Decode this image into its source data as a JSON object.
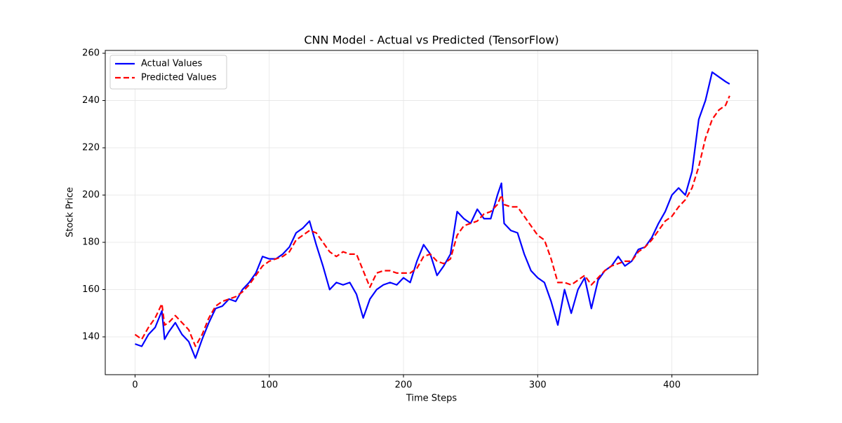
{
  "chart_data": {
    "type": "line",
    "title": "CNN Model - Actual vs Predicted (TensorFlow)",
    "x_label": "Time Steps",
    "y_label": "Stock Price",
    "x": [
      0,
      5,
      10,
      15,
      20,
      22,
      25,
      30,
      35,
      40,
      45,
      50,
      55,
      60,
      65,
      70,
      75,
      80,
      85,
      90,
      95,
      100,
      105,
      110,
      115,
      120,
      125,
      130,
      135,
      140,
      145,
      150,
      155,
      160,
      165,
      170,
      175,
      180,
      185,
      190,
      195,
      200,
      205,
      210,
      215,
      220,
      225,
      230,
      235,
      240,
      245,
      250,
      255,
      260,
      265,
      270,
      273,
      275,
      280,
      285,
      290,
      295,
      300,
      305,
      310,
      315,
      320,
      325,
      330,
      335,
      340,
      345,
      350,
      355,
      360,
      365,
      370,
      375,
      380,
      385,
      390,
      395,
      400,
      405,
      410,
      415,
      420,
      425,
      430,
      435,
      440,
      443
    ],
    "series": [
      {
        "name": "Actual Values",
        "color": "#0000ff",
        "dash": false,
        "values": [
          137,
          136,
          141,
          144,
          151,
          139,
          142,
          146,
          141,
          138,
          131,
          139,
          146,
          152,
          153,
          156,
          155,
          160,
          163,
          167,
          174,
          173,
          173,
          175,
          178,
          184,
          186,
          189,
          179,
          170,
          160,
          163,
          162,
          163,
          158,
          148,
          156,
          160,
          162,
          163,
          162,
          165,
          163,
          172,
          179,
          175,
          166,
          170,
          175,
          193,
          190,
          188,
          194,
          190,
          190,
          200,
          205,
          188,
          185,
          184,
          175,
          168,
          165,
          163,
          155,
          145,
          160,
          150,
          160,
          165,
          152,
          164,
          168,
          170,
          174,
          170,
          172,
          177,
          178,
          182,
          188,
          193,
          200,
          203,
          200,
          210,
          232,
          240,
          252,
          250,
          248,
          247
        ]
      },
      {
        "name": "Predicted Values",
        "color": "#ff0000",
        "dash": true,
        "values": [
          141,
          139,
          144,
          148,
          154,
          145,
          146,
          149,
          146,
          143,
          136,
          141,
          148,
          153,
          155,
          156,
          157,
          159,
          162,
          166,
          170,
          172,
          173,
          174,
          176,
          181,
          183,
          185,
          184,
          180,
          176,
          174,
          176,
          175,
          175,
          168,
          161,
          167,
          168,
          168,
          167,
          167,
          167,
          169,
          174,
          175,
          172,
          171,
          173,
          183,
          187,
          188,
          189,
          192,
          193,
          196,
          200,
          196,
          195,
          195,
          191,
          187,
          183,
          181,
          173,
          163,
          163,
          162,
          164,
          166,
          162,
          165,
          168,
          170,
          171,
          172,
          172,
          176,
          178,
          181,
          185,
          189,
          191,
          195,
          198,
          203,
          212,
          224,
          232,
          236,
          238,
          242
        ]
      }
    ],
    "xlim": [
      -22.2,
      464
    ],
    "ylim": [
      124,
      261.2
    ],
    "xticks": [
      0,
      100,
      200,
      300,
      400
    ],
    "yticks": [
      140,
      160,
      180,
      200,
      220,
      240,
      260
    ],
    "grid": true,
    "legend": "upper left"
  }
}
